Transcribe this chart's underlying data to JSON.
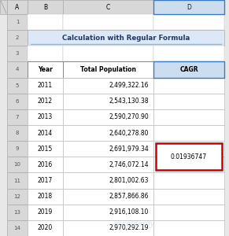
{
  "title": "Calculation with Regular Formula",
  "col_headers": [
    "Year",
    "Total Population",
    "CAGR"
  ],
  "col_letters": [
    "A",
    "B",
    "C",
    "D"
  ],
  "years": [
    2011,
    2012,
    2013,
    2014,
    2015,
    2016,
    2017,
    2018,
    2019,
    2020
  ],
  "populations": [
    "2,499,322.16",
    "2,543,130.38",
    "2,590,270.90",
    "2,640,278.80",
    "2,691,979.34",
    "2,746,072.14",
    "2,801,002.63",
    "2,857,866.86",
    "2,916,108.10",
    "2,970,292.19"
  ],
  "cagr_value": "0.01936747",
  "cagr_data_idx": 4,
  "bg_color": "#e8e8e8",
  "cell_bg": "#ffffff",
  "header_bg": "#ffffff",
  "title_color": "#1f3864",
  "grid_color": "#bfbfbf",
  "col_D_header_bg": "#ccddf0",
  "col_D_bg": "#ffffff",
  "cagr_border_color": "#cc0000",
  "row_num_bg": "#d8d8d8",
  "col_header_bg": "#d8d8d8",
  "title_bg": "#dce8f5",
  "title_underline_color": "#9ab4cc",
  "header_row_bg": "#ffffff",
  "header_bold": true
}
